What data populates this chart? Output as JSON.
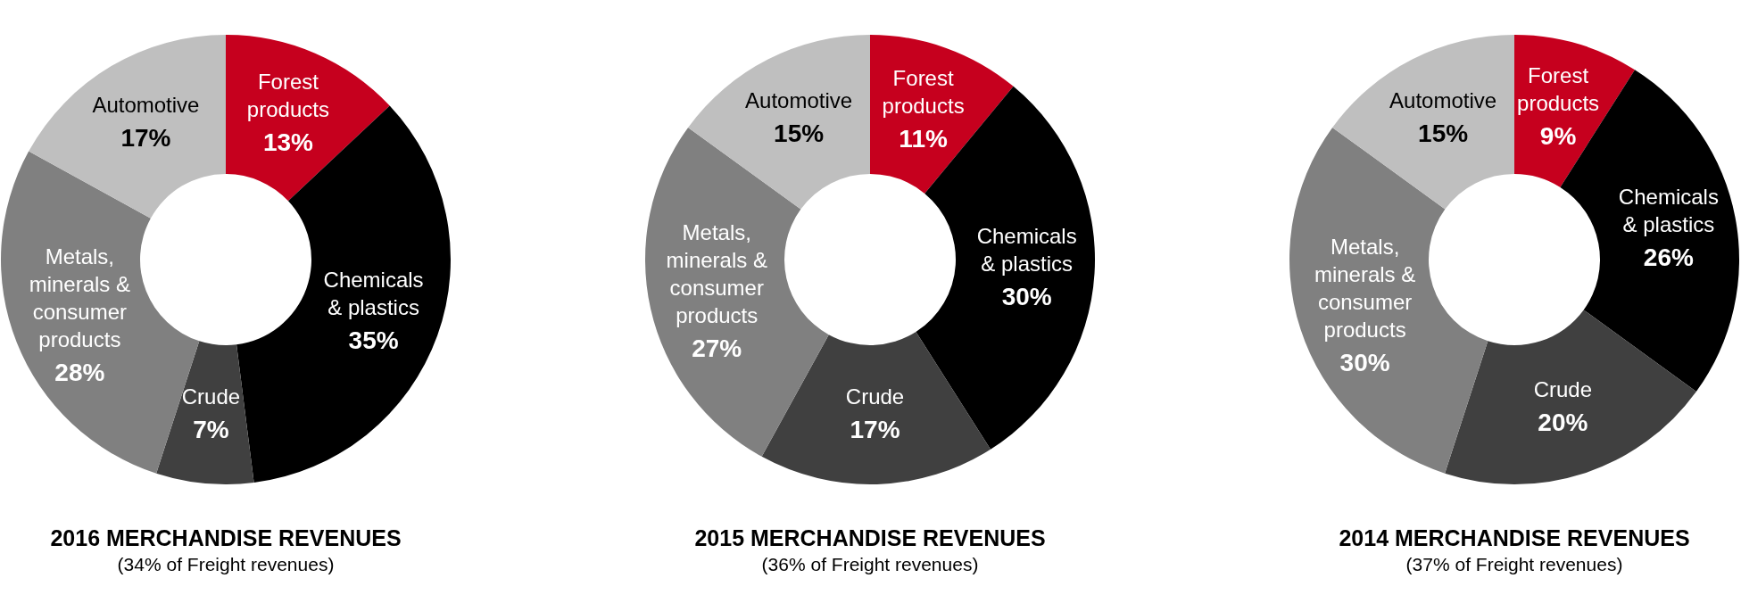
{
  "chart_data": [
    {
      "type": "donut",
      "title": "2016 MERCHANDISE REVENUES",
      "subtitle": "(34% of Freight revenues)",
      "categories": [
        "Forest products",
        "Chemicals & plastics",
        "Crude",
        "Metals, minerals & consumer products",
        "Automotive"
      ],
      "values": [
        13,
        35,
        7,
        28,
        17
      ],
      "value_labels": [
        "13%",
        "35%",
        "7%",
        "28%",
        "17%"
      ],
      "colors": [
        "#c6001e",
        "#000000",
        "#404040",
        "#808080",
        "#bfbfbf"
      ]
    },
    {
      "type": "donut",
      "title": "2015 MERCHANDISE REVENUES",
      "subtitle": "(36% of Freight revenues)",
      "categories": [
        "Forest products",
        "Chemicals & plastics",
        "Crude",
        "Metals, minerals & consumer products",
        "Automotive"
      ],
      "values": [
        11,
        30,
        17,
        27,
        15
      ],
      "value_labels": [
        "11%",
        "30%",
        "17%",
        "27%",
        "15%"
      ],
      "colors": [
        "#c6001e",
        "#000000",
        "#404040",
        "#808080",
        "#bfbfbf"
      ]
    },
    {
      "type": "donut",
      "title": "2014 MERCHANDISE REVENUES",
      "subtitle": "(37% of Freight revenues)",
      "categories": [
        "Forest products",
        "Chemicals & plastics",
        "Crude",
        "Metals, minerals & consumer products",
        "Automotive"
      ],
      "values": [
        9,
        26,
        20,
        30,
        15
      ],
      "value_labels": [
        "9%",
        "26%",
        "20%",
        "30%",
        "15%"
      ],
      "colors": [
        "#c6001e",
        "#000000",
        "#404040",
        "#808080",
        "#bfbfbf"
      ]
    }
  ]
}
